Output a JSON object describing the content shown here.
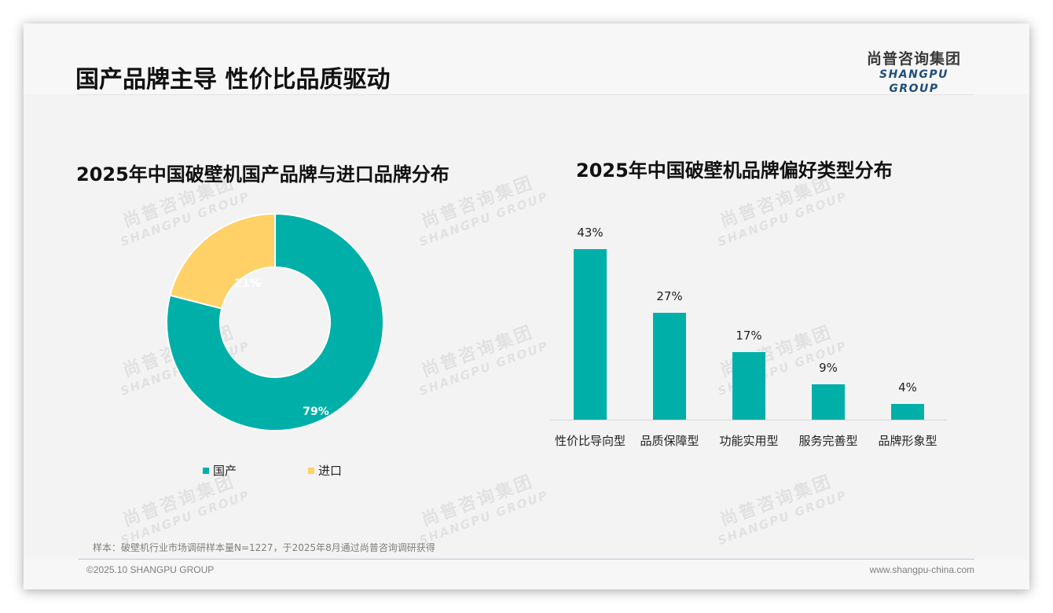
{
  "header": {
    "title": "国产品牌主导 性价比品质驱动",
    "logo_cn": "尚普咨询集团",
    "logo_en": "SHANGPU GROUP"
  },
  "watermark": {
    "cn": "尚普咨询集团",
    "en": "SHANGPU GROUP"
  },
  "colors": {
    "teal": "#00b0a8",
    "yellow": "#ffd166",
    "logo_blue": "#1f4e79"
  },
  "donut": {
    "title": "2025年中国破壁机国产品牌与进口品牌分布",
    "slices": [
      {
        "label": "国产",
        "value": 79,
        "display": "79%",
        "color": "#00b0a8"
      },
      {
        "label": "进口",
        "value": 21,
        "display": "21%",
        "color": "#ffd166"
      }
    ]
  },
  "bars": {
    "title": "2025年中国破壁机品牌偏好类型分布",
    "items": [
      {
        "label": "性价比导向型",
        "value": 43,
        "display": "43%"
      },
      {
        "label": "品质保障型",
        "value": 27,
        "display": "27%"
      },
      {
        "label": "功能实用型",
        "value": 17,
        "display": "17%"
      },
      {
        "label": "服务完善型",
        "value": 9,
        "display": "9%"
      },
      {
        "label": "品牌形象型",
        "value": 4,
        "display": "4%"
      }
    ]
  },
  "footer": {
    "note": "样本：破壁机行业市场调研样本量N=1227，于2025年8月通过尚普咨询调研获得",
    "copyright": "©2025.10 SHANGPU GROUP",
    "website": "www.shangpu-china.com"
  },
  "chart_data": [
    {
      "type": "pie",
      "title": "2025年中国破壁机国产品牌与进口品牌分布",
      "categories": [
        "国产",
        "进口"
      ],
      "values": [
        79,
        21
      ],
      "unit": "%",
      "donut": true,
      "legend_position": "bottom"
    },
    {
      "type": "bar",
      "title": "2025年中国破壁机品牌偏好类型分布",
      "categories": [
        "性价比导向型",
        "品质保障型",
        "功能实用型",
        "服务完善型",
        "品牌形象型"
      ],
      "values": [
        43,
        27,
        17,
        9,
        4
      ],
      "unit": "%",
      "xlabel": "",
      "ylabel": "",
      "grid": false,
      "data_labels": true
    }
  ]
}
